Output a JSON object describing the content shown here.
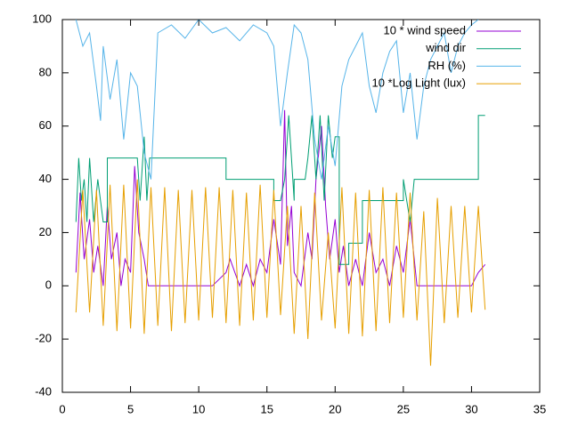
{
  "chart_data": {
    "type": "line",
    "xlim": [
      0,
      35
    ],
    "xticks": [
      0,
      5,
      10,
      15,
      20,
      25,
      30,
      35
    ],
    "ylim": [
      -40,
      100
    ],
    "yticks": [
      -40,
      -20,
      0,
      20,
      40,
      60,
      80,
      100
    ],
    "legend": "top-right",
    "series": [
      {
        "name": "10 * wind speed",
        "color": "#9400d3",
        "x": [
          1,
          1.3,
          1.6,
          2,
          2.3,
          2.6,
          3,
          3.3,
          3.6,
          4,
          4.3,
          4.6,
          5,
          5.3,
          5.6,
          6,
          6.3,
          7,
          8,
          8.5,
          9,
          10,
          11,
          12,
          12.3,
          13,
          13.5,
          14,
          14.5,
          15,
          15.5,
          16,
          16.3,
          16.5,
          16.8,
          17,
          17.5,
          18,
          18.3,
          18.6,
          19,
          19.3,
          19.6,
          20,
          20.3,
          20.6,
          21,
          21.5,
          22,
          22.5,
          23,
          23.5,
          24,
          24.5,
          25,
          25.5,
          26,
          27,
          28,
          29,
          30,
          30.5,
          31
        ],
        "values": [
          5,
          35,
          10,
          25,
          5,
          15,
          0,
          30,
          10,
          20,
          0,
          10,
          5,
          45,
          20,
          10,
          0,
          0,
          0,
          0,
          0,
          0,
          0,
          5,
          10,
          0,
          8,
          0,
          10,
          5,
          25,
          8,
          66,
          15,
          30,
          5,
          0,
          20,
          10,
          40,
          60,
          30,
          10,
          25,
          5,
          15,
          0,
          10,
          0,
          20,
          5,
          10,
          0,
          15,
          5,
          25,
          0,
          0,
          0,
          0,
          0,
          5,
          8
        ]
      },
      {
        "name": "wind dir",
        "color": "#009e73",
        "x": [
          1,
          1.2,
          1.4,
          1.6,
          1.8,
          2,
          2.3,
          2.6,
          3,
          3.3,
          3.3,
          5.5,
          5.7,
          6,
          6.2,
          6.4,
          12,
          12,
          15.5,
          15.5,
          16,
          16.3,
          16.6,
          17,
          17,
          17.8,
          18,
          18.3,
          18.6,
          18.9,
          19.2,
          19.5,
          19.8,
          20,
          20.3,
          20.3,
          21,
          21,
          22,
          22,
          25,
          25,
          25.5,
          25.8,
          26,
          26,
          30.5,
          30.5,
          31
        ],
        "values": [
          24,
          48,
          32,
          40,
          24,
          48,
          24,
          40,
          24,
          24,
          48,
          48,
          32,
          56,
          32,
          48,
          48,
          40,
          40,
          32,
          32,
          40,
          64,
          32,
          40,
          40,
          48,
          64,
          40,
          64,
          32,
          64,
          48,
          56,
          56,
          8,
          8,
          16,
          16,
          32,
          32,
          40,
          24,
          40,
          40,
          40,
          40,
          64,
          64
        ]
      },
      {
        "name": "RH (%)",
        "color": "#56b4e9",
        "x": [
          1,
          1.5,
          2,
          2.5,
          2.8,
          3,
          3.5,
          4,
          4.5,
          5,
          5.5,
          6,
          6.5,
          7,
          8,
          9,
          10,
          11,
          12,
          13,
          14,
          15,
          15.5,
          16,
          16.5,
          17,
          17.5,
          18,
          18.5,
          19,
          19.5,
          20,
          20.5,
          21,
          21.5,
          22,
          22.5,
          23,
          23.5,
          24,
          24.5,
          25,
          25.5,
          26,
          26.5,
          27,
          27.5,
          28,
          28.5,
          29,
          29.5,
          30,
          30.5
        ],
        "values": [
          100,
          90,
          95,
          75,
          62,
          90,
          70,
          85,
          55,
          80,
          75,
          50,
          40,
          95,
          98,
          93,
          100,
          95,
          97,
          92,
          98,
          95,
          90,
          60,
          80,
          98,
          95,
          85,
          55,
          40,
          60,
          45,
          75,
          85,
          90,
          95,
          75,
          65,
          80,
          88,
          92,
          65,
          80,
          55,
          75,
          85,
          90,
          95,
          80,
          90,
          95,
          98,
          100
        ]
      },
      {
        "name": "10 *Log Light (lux)",
        "color": "#e69f00",
        "x": [
          1,
          1.5,
          2,
          2.5,
          3,
          3.5,
          4,
          4.5,
          5,
          5.5,
          6,
          6.5,
          7,
          7.5,
          8,
          8.5,
          9,
          9.5,
          10,
          10.5,
          11,
          11.5,
          12,
          12.5,
          13,
          13.5,
          14,
          14.5,
          15,
          15.5,
          16,
          16.5,
          17,
          17.5,
          18,
          18.5,
          19,
          19.5,
          20,
          20.5,
          21,
          21.5,
          22,
          22.5,
          23,
          23.5,
          24,
          24.5,
          25,
          25.5,
          26,
          26.5,
          27,
          27.5,
          28,
          28.5,
          29,
          29.5,
          30,
          30.5,
          31
        ],
        "values": [
          -10,
          36,
          -10,
          36,
          -15,
          38,
          -17,
          38,
          -16,
          40,
          -18,
          37,
          -15,
          37,
          -17,
          36,
          -14,
          36,
          -13,
          37,
          -12,
          37,
          -14,
          36,
          -15,
          35,
          -13,
          38,
          -12,
          36,
          -11,
          30,
          -18,
          30,
          -20,
          35,
          -13,
          20,
          -16,
          37,
          -18,
          35,
          -19,
          36,
          -17,
          37,
          -14,
          35,
          -12,
          35,
          -13,
          28,
          -30,
          33,
          -14,
          30,
          -12,
          30,
          -10,
          30,
          -9
        ]
      }
    ]
  }
}
